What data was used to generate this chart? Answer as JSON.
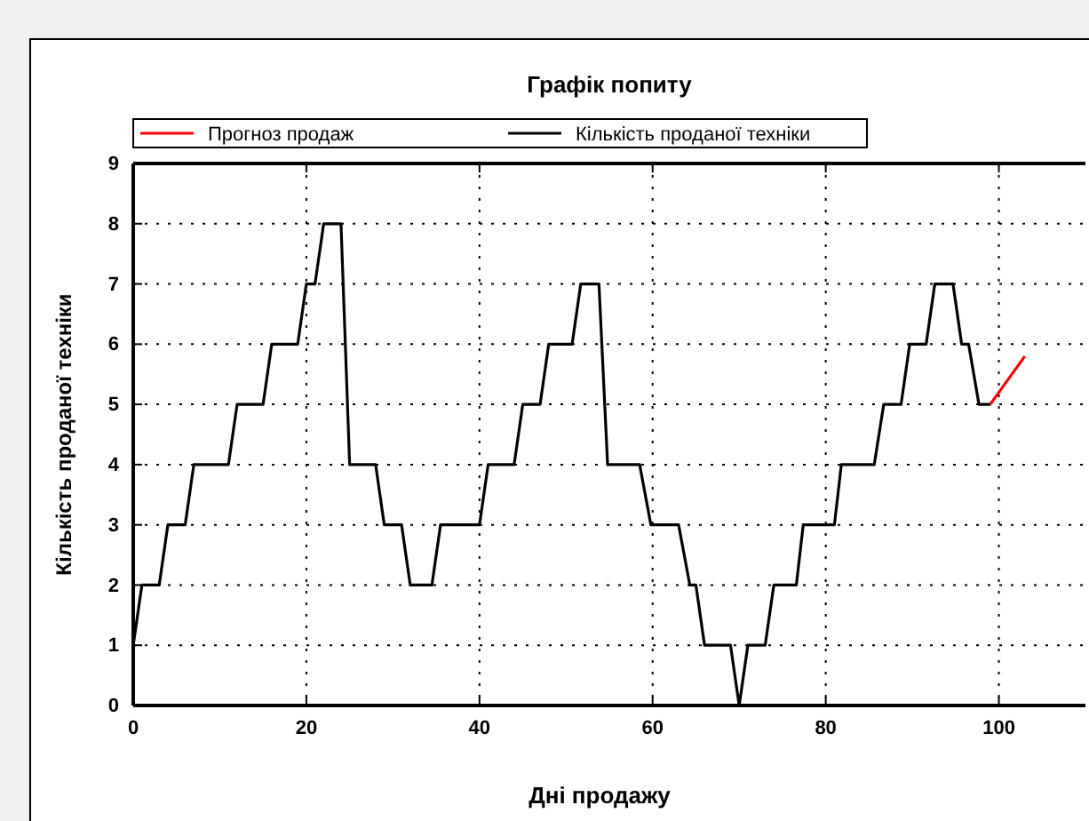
{
  "chart_data": {
    "type": "line",
    "title": "Графік попиту",
    "xlabel": "Дні продажу",
    "ylabel": "Кількість проданої техніки",
    "xlim": [
      0,
      110
    ],
    "xticks": [
      0,
      20,
      40,
      60,
      80,
      100
    ],
    "ylim": [
      0,
      9
    ],
    "yticks": [
      0,
      1,
      2,
      3,
      4,
      5,
      6,
      7,
      8,
      9
    ],
    "grid": true,
    "legend": "top",
    "line_style": "solid",
    "series": [
      {
        "name": "Прогноз продаж",
        "color": "#ff0000",
        "x": [
          99,
          103
        ],
        "values": [
          5,
          5.8
        ]
      },
      {
        "name": "Кількість проданої техніки",
        "color": "#000000",
        "x": [
          0,
          1,
          3,
          4,
          6,
          7,
          10,
          11,
          12,
          14,
          15,
          16,
          18,
          19,
          20,
          20.5,
          21,
          22,
          24,
          24.5,
          25,
          28,
          29,
          31,
          32,
          34.5,
          35.5,
          40,
          41,
          44,
          45,
          47,
          48,
          50.7,
          51.7,
          53.8,
          54.8,
          58.5,
          59.8,
          63,
          64.3,
          65,
          66,
          69,
          70,
          71,
          73,
          74,
          76.6,
          77.4,
          81,
          81.8,
          85.6,
          86.7,
          88.7,
          89.7,
          91.6,
          92.6,
          94.7,
          95.7,
          96.5,
          97.7,
          99
        ],
        "values": [
          1,
          2,
          2,
          3,
          3,
          4,
          4,
          4,
          5,
          5,
          5,
          6,
          6,
          6,
          7,
          7,
          7,
          8,
          8,
          6,
          4,
          4,
          3,
          3,
          2,
          2,
          3,
          3,
          4,
          4,
          5,
          5,
          6,
          6,
          7,
          7,
          4,
          4,
          3,
          3,
          2,
          2,
          1,
          1,
          0,
          1,
          1,
          2,
          2,
          3,
          3,
          4,
          4,
          5,
          5,
          6,
          6,
          7,
          7,
          6,
          6,
          5,
          5
        ]
      }
    ]
  }
}
